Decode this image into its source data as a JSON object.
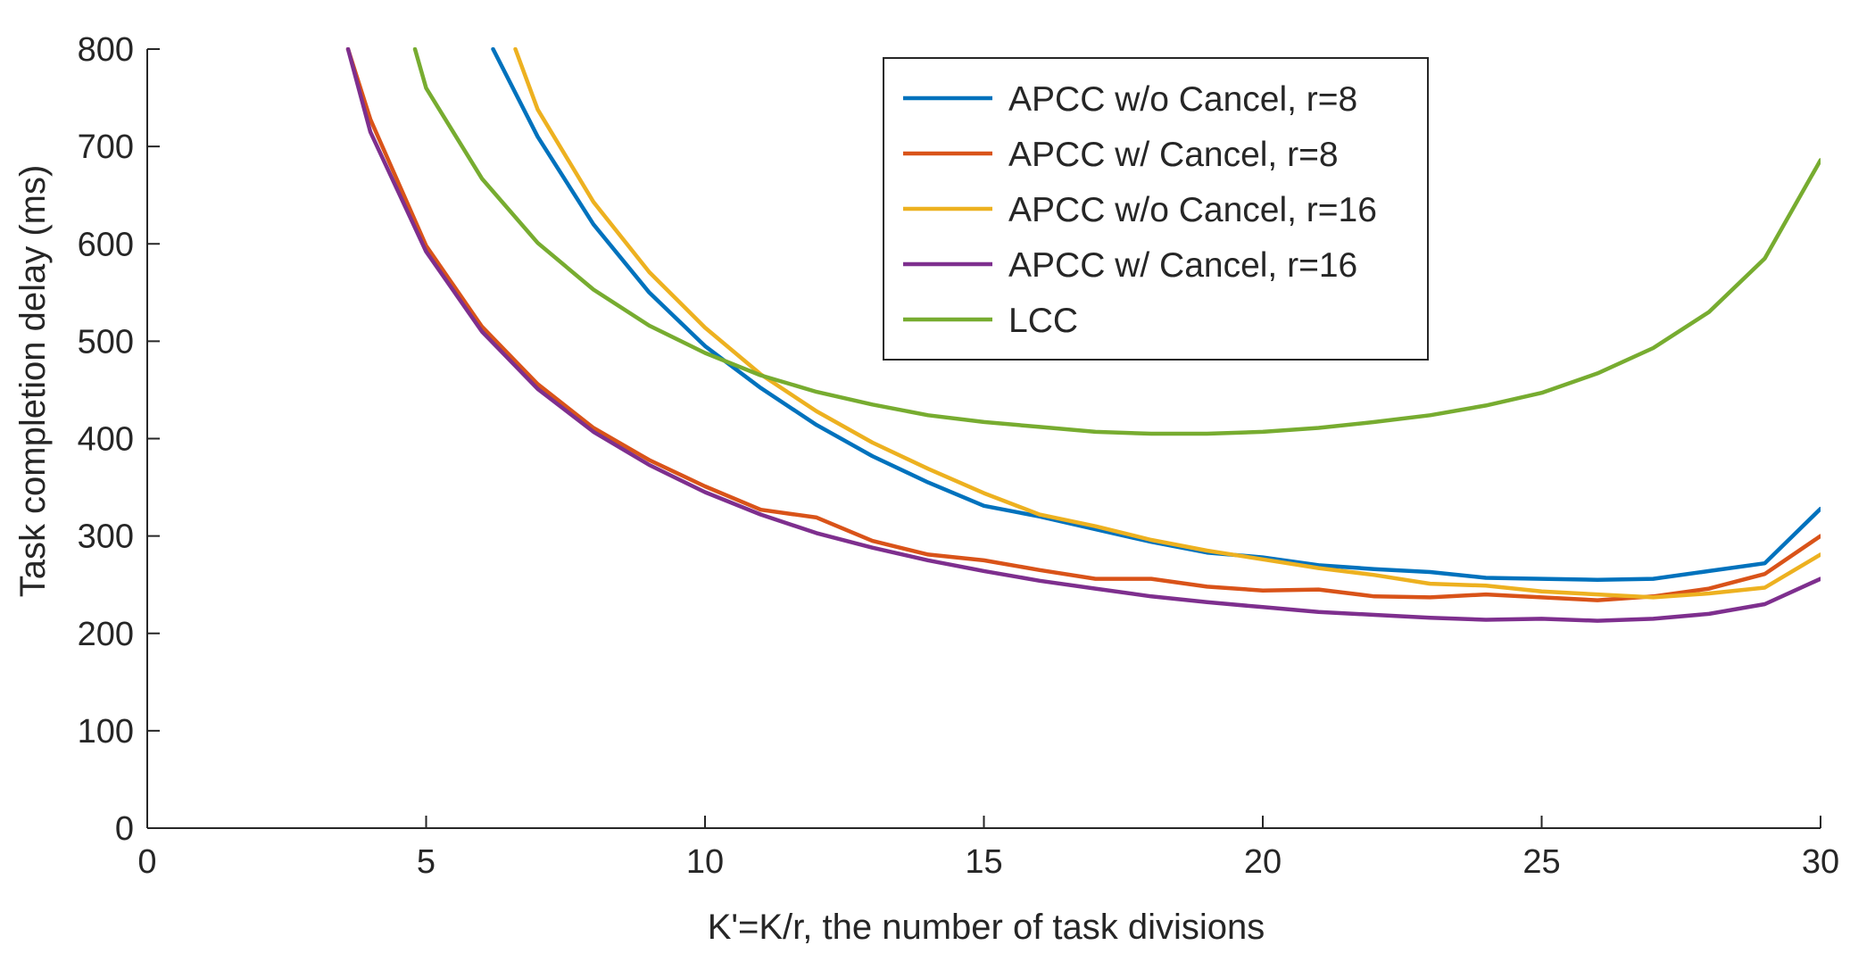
{
  "chart_data": {
    "type": "line",
    "title": "",
    "xlabel": "K'=K/r, the number of task divisions",
    "ylabel": "Task completion delay (ms)",
    "xlim": [
      0,
      30
    ],
    "ylim": [
      0,
      800
    ],
    "xticks": [
      0,
      5,
      10,
      15,
      20,
      25,
      30
    ],
    "yticks": [
      0,
      100,
      200,
      300,
      400,
      500,
      600,
      700,
      800
    ],
    "grid": false,
    "legend_position": "top-right",
    "series": [
      {
        "name": "APCC w/o Cancel, r=8",
        "color": "#0072BD",
        "x": [
          6.2,
          7,
          8,
          9,
          10,
          11,
          12,
          13,
          14,
          15,
          16,
          17,
          18,
          19,
          20,
          21,
          22,
          23,
          24,
          25,
          26,
          27,
          28,
          29,
          30
        ],
        "y": [
          800,
          710,
          620,
          550,
          495,
          452,
          414,
          382,
          355,
          331,
          320,
          307,
          294,
          283,
          278,
          270,
          266,
          263,
          257,
          256,
          255,
          256,
          264,
          272,
          328
        ]
      },
      {
        "name": "APCC w/ Cancel, r=8",
        "color": "#D95319",
        "x": [
          3.6,
          4,
          5,
          6,
          7,
          8,
          9,
          10,
          11,
          12,
          13,
          14,
          15,
          16,
          17,
          18,
          19,
          20,
          21,
          22,
          23,
          24,
          25,
          26,
          27,
          28,
          29,
          30
        ],
        "y": [
          800,
          728,
          598,
          515,
          456,
          411,
          378,
          351,
          327,
          319,
          295,
          281,
          275,
          265,
          256,
          256,
          248,
          244,
          245,
          238,
          237,
          240,
          237,
          234,
          238,
          246,
          261,
          300
        ]
      },
      {
        "name": "APCC w/o Cancel, r=16",
        "color": "#EDB120",
        "x": [
          6.6,
          7,
          8,
          9,
          10,
          11,
          12,
          13,
          14,
          15,
          16,
          17,
          18,
          19,
          20,
          21,
          22,
          23,
          24,
          25,
          26,
          27,
          28,
          29,
          30
        ],
        "y": [
          800,
          738,
          643,
          571,
          514,
          466,
          428,
          396,
          369,
          344,
          322,
          310,
          296,
          285,
          276,
          267,
          260,
          251,
          249,
          243,
          240,
          237,
          241,
          247,
          281
        ]
      },
      {
        "name": "APCC w/ Cancel, r=16",
        "color": "#7E2F8E",
        "x": [
          3.6,
          4,
          5,
          6,
          7,
          8,
          9,
          10,
          11,
          12,
          13,
          14,
          15,
          16,
          17,
          18,
          19,
          20,
          21,
          22,
          23,
          24,
          25,
          26,
          27,
          28,
          29,
          30
        ],
        "y": [
          800,
          715,
          592,
          510,
          451,
          407,
          373,
          345,
          322,
          303,
          288,
          275,
          264,
          254,
          246,
          238,
          232,
          227,
          222,
          219,
          216,
          214,
          215,
          213,
          215,
          220,
          230,
          256
        ]
      },
      {
        "name": "LCC",
        "color": "#77AC30",
        "x": [
          4.8,
          5,
          6,
          7,
          8,
          9,
          10,
          11,
          12,
          13,
          14,
          15,
          16,
          17,
          18,
          19,
          20,
          21,
          22,
          23,
          24,
          25,
          26,
          27,
          28,
          29,
          30
        ],
        "y": [
          800,
          760,
          667,
          601,
          553,
          516,
          488,
          465,
          448,
          435,
          424,
          417,
          412,
          407,
          405,
          405,
          407,
          411,
          417,
          424,
          434,
          447,
          467,
          493,
          530,
          585,
          686
        ]
      }
    ]
  }
}
